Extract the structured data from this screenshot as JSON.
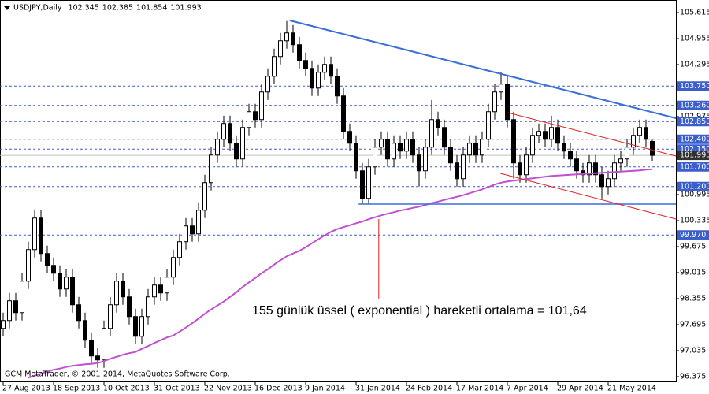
{
  "chart_data": {
    "type": "candlestick",
    "title": "USDJPY,Daily",
    "header_values": [
      102.345,
      102.385,
      101.854,
      101.993
    ],
    "watermark": "GCM MetaTrader, © 2001-2014, MetaQuotes Software Corp.",
    "annotation": "155 günlük üssel ( exponential ) hareketli ortalama = 101,64",
    "categories": [
      "27 Aug 2013",
      null,
      null,
      null,
      null,
      null,
      null,
      null,
      "18 Sep 2013",
      null,
      null,
      null,
      null,
      null,
      null,
      null,
      "10 Oct 2013",
      null,
      null,
      null,
      null,
      null,
      null,
      null,
      "31 Oct 2013",
      null,
      null,
      null,
      null,
      null,
      null,
      null,
      "22 Nov 2013",
      null,
      null,
      null,
      null,
      null,
      null,
      null,
      "16 Dec 2013",
      null,
      null,
      null,
      null,
      null,
      null,
      null,
      "9 Jan 2014",
      null,
      null,
      null,
      null,
      null,
      null,
      null,
      "31 Jan 2014",
      null,
      null,
      null,
      null,
      null,
      null,
      null,
      "24 Feb 2014",
      null,
      null,
      null,
      null,
      null,
      null,
      null,
      "17 Mar 2014",
      null,
      null,
      null,
      null,
      null,
      null,
      null,
      "7 Apr 2014",
      null,
      null,
      null,
      null,
      null,
      null,
      null,
      "29 Apr 2014",
      null,
      null,
      null,
      null,
      null,
      null,
      null,
      "21 May 2014",
      null,
      null,
      null,
      null,
      null,
      null,
      null
    ],
    "open": [
      97.6,
      97.8,
      98.3,
      98.0,
      98.8,
      99.6,
      100.4,
      99.5,
      99.2,
      99.0,
      98.6,
      98.9,
      98.2,
      97.8,
      97.3,
      96.9,
      96.8,
      97.6,
      98.2,
      98.8,
      98.4,
      97.9,
      97.4,
      97.9,
      98.4,
      98.7,
      98.5,
      98.9,
      99.4,
      99.8,
      100.2,
      100.0,
      100.6,
      101.3,
      102.0,
      102.4,
      102.8,
      102.3,
      101.9,
      102.7,
      103.1,
      102.9,
      103.6,
      104.0,
      104.5,
      104.9,
      105.1,
      104.8,
      104.4,
      104.2,
      103.7,
      104.1,
      104.3,
      104.0,
      103.5,
      102.6,
      102.3,
      101.6,
      100.9,
      101.7,
      102.2,
      102.4,
      101.9,
      102.3,
      102.1,
      102.4,
      102.0,
      101.6,
      102.2,
      102.9,
      102.7,
      102.2,
      101.8,
      101.4,
      102.0,
      102.3,
      102.0,
      102.4,
      103.1,
      103.6,
      103.8,
      102.9,
      101.8,
      101.5,
      102.0,
      102.5,
      102.6,
      102.4,
      102.7,
      102.3,
      102.1,
      101.9,
      101.6,
      101.5,
      101.8,
      101.5,
      101.2,
      101.4,
      101.8,
      101.9,
      102.2,
      102.5,
      102.7,
      102.345
    ],
    "high": [
      98.0,
      98.5,
      98.5,
      99.0,
      99.8,
      100.6,
      100.6,
      99.7,
      99.4,
      99.2,
      99.1,
      99.1,
      98.4,
      98.0,
      97.5,
      97.1,
      97.8,
      98.4,
      99.0,
      99.0,
      98.6,
      98.1,
      98.1,
      98.6,
      98.9,
      98.9,
      99.1,
      99.6,
      100.0,
      100.4,
      100.4,
      100.8,
      101.5,
      102.2,
      102.6,
      103.0,
      103.0,
      102.5,
      102.9,
      103.3,
      103.3,
      103.8,
      104.2,
      104.7,
      105.1,
      105.4,
      105.3,
      105.0,
      104.6,
      104.4,
      104.3,
      104.5,
      104.5,
      104.2,
      103.7,
      102.8,
      102.5,
      101.8,
      101.9,
      102.4,
      102.6,
      102.6,
      102.5,
      102.5,
      102.6,
      102.6,
      102.2,
      102.4,
      103.4,
      103.1,
      102.9,
      102.4,
      102.0,
      102.2,
      102.5,
      102.5,
      102.6,
      103.3,
      103.8,
      104.1,
      104.0,
      103.1,
      102.0,
      102.2,
      102.7,
      102.8,
      102.8,
      103.0,
      102.9,
      102.5,
      102.3,
      102.1,
      101.8,
      102.0,
      102.0,
      101.7,
      101.6,
      102.0,
      102.1,
      102.4,
      102.7,
      102.9,
      102.9,
      102.385
    ],
    "low": [
      97.4,
      97.6,
      97.8,
      97.8,
      98.6,
      99.4,
      99.3,
      99.0,
      98.8,
      98.4,
      98.4,
      98.0,
      97.6,
      97.1,
      96.7,
      96.6,
      96.6,
      97.4,
      98.0,
      98.2,
      97.7,
      97.2,
      97.2,
      97.7,
      98.2,
      98.3,
      98.3,
      98.7,
      99.2,
      99.6,
      99.8,
      99.8,
      100.4,
      101.1,
      101.8,
      102.2,
      102.1,
      101.7,
      101.7,
      102.5,
      102.7,
      102.7,
      103.4,
      103.8,
      104.3,
      104.7,
      104.6,
      104.2,
      104.0,
      103.5,
      103.5,
      103.9,
      103.8,
      103.3,
      102.4,
      102.1,
      101.4,
      100.75,
      100.75,
      101.5,
      102.0,
      101.7,
      101.7,
      101.9,
      101.9,
      101.8,
      101.2,
      101.4,
      102.0,
      102.5,
      102.0,
      101.6,
      101.2,
      101.2,
      101.8,
      101.8,
      101.8,
      102.2,
      102.9,
      103.4,
      102.7,
      101.4,
      101.3,
      101.3,
      101.8,
      102.3,
      102.2,
      102.2,
      102.1,
      101.9,
      101.7,
      101.4,
      101.3,
      101.3,
      101.3,
      100.9,
      101.0,
      101.2,
      101.6,
      101.7,
      102.0,
      102.3,
      102.2,
      101.854
    ],
    "close": [
      97.8,
      98.3,
      98.0,
      98.8,
      99.6,
      100.4,
      99.5,
      99.2,
      99.0,
      98.6,
      98.9,
      98.2,
      97.8,
      97.3,
      96.9,
      96.8,
      97.6,
      98.2,
      98.8,
      98.4,
      97.9,
      97.4,
      97.9,
      98.4,
      98.7,
      98.5,
      98.9,
      99.4,
      99.8,
      100.2,
      100.0,
      100.6,
      101.3,
      102.0,
      102.4,
      102.8,
      102.3,
      101.9,
      102.7,
      103.1,
      102.9,
      103.6,
      104.0,
      104.5,
      104.9,
      105.1,
      104.8,
      104.4,
      104.2,
      103.7,
      104.1,
      104.3,
      104.0,
      103.5,
      102.6,
      102.3,
      101.6,
      100.9,
      101.7,
      102.2,
      102.4,
      101.9,
      102.3,
      102.1,
      102.4,
      102.0,
      101.6,
      102.2,
      102.9,
      102.7,
      102.2,
      101.8,
      101.4,
      102.0,
      102.3,
      102.0,
      102.4,
      103.1,
      103.6,
      103.8,
      102.9,
      101.8,
      101.5,
      102.0,
      102.5,
      102.6,
      102.4,
      102.7,
      102.3,
      102.1,
      101.9,
      101.6,
      101.5,
      101.8,
      101.5,
      101.2,
      101.4,
      101.8,
      101.9,
      102.2,
      102.5,
      102.7,
      102.4,
      101.993
    ],
    "up_color": "#ffffff",
    "down_color": "#000000",
    "ma": {
      "color": "#c050d0",
      "values": [
        null,
        null,
        null,
        null,
        96.35,
        96.4,
        96.45,
        96.5,
        96.55,
        96.58,
        96.62,
        96.65,
        96.67,
        96.69,
        96.7,
        96.72,
        96.77,
        96.83,
        96.88,
        96.93,
        96.97,
        97.0,
        97.08,
        97.15,
        97.23,
        97.3,
        97.37,
        97.42,
        97.52,
        97.62,
        97.73,
        97.85,
        97.97,
        98.08,
        98.18,
        98.28,
        98.4,
        98.52,
        98.65,
        98.77,
        98.88,
        99.0,
        99.1,
        99.22,
        99.33,
        99.43,
        99.5,
        99.57,
        99.66,
        99.76,
        99.86,
        99.96,
        100.05,
        100.12,
        100.17,
        100.22,
        100.27,
        100.31,
        100.37,
        100.42,
        100.47,
        100.51,
        100.55,
        100.59,
        100.62,
        100.66,
        100.69,
        100.73,
        100.78,
        100.82,
        100.86,
        100.9,
        100.94,
        100.98,
        101.03,
        101.08,
        101.13,
        101.19,
        101.25,
        101.3,
        101.33,
        101.35,
        101.37,
        101.39,
        101.41,
        101.43,
        101.45,
        101.47,
        101.48,
        101.49,
        101.5,
        101.51,
        101.52,
        101.53,
        101.54,
        101.55,
        101.56,
        101.57,
        101.58,
        101.59,
        101.6,
        101.61,
        101.63,
        101.64
      ]
    },
    "xlim": [
      -0.5,
      106.75
    ],
    "ylim": [
      96.255,
      105.935
    ],
    "yticks": [
      105.615,
      104.955,
      104.295,
      102.975,
      100.995,
      100.335,
      99.675,
      99.015,
      98.355,
      97.695,
      97.035,
      96.375
    ],
    "level_color": "#3a5fcd",
    "levels": [
      {
        "value": 103.75,
        "label": "103.750"
      },
      {
        "value": 103.26,
        "label": "103.260"
      },
      {
        "value": 102.85,
        "label": "102.850"
      },
      {
        "value": 102.4,
        "label": "102.400"
      },
      {
        "value": 102.15,
        "label": "102.150"
      },
      {
        "value": 101.7,
        "label": "101.700"
      },
      {
        "value": 101.2,
        "label": "101.200"
      },
      {
        "value": 99.97,
        "label": "99.970"
      }
    ],
    "price_line": 101.993,
    "lines": [
      {
        "color": "#3a6fd8",
        "start": [
          45.5,
          105.415
        ],
        "end": [
          106.75,
          102.935
        ]
      },
      {
        "color": "#3a6fd8",
        "start": [
          56.4,
          100.755
        ],
        "end": [
          106.75,
          100.755
        ]
      },
      {
        "color": "#e02020",
        "start": [
          80.1,
          103.075
        ],
        "end": [
          106.75,
          101.975
        ]
      },
      {
        "color": "#e02020",
        "start": [
          78.9,
          101.535
        ],
        "end": [
          106.75,
          100.375
        ]
      },
      {
        "color": "#e02020",
        "start": [
          59.6,
          100.375
        ],
        "end": [
          59.6,
          98.335
        ]
      }
    ]
  }
}
